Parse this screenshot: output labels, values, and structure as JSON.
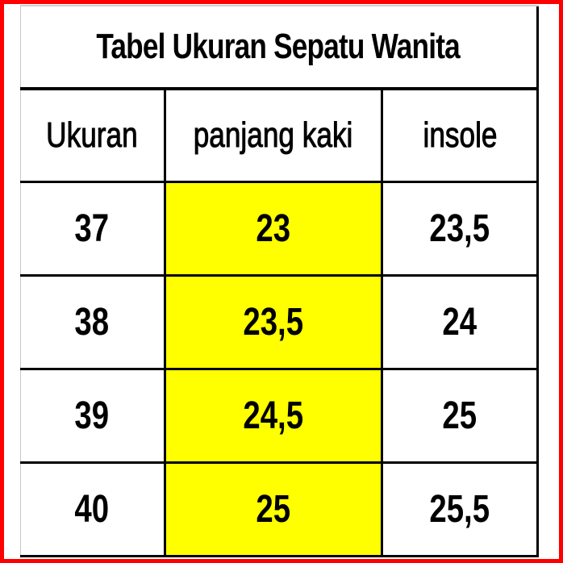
{
  "table": {
    "title": "Tabel Ukuran Sepatu Wanita",
    "headers": [
      "Ukuran",
      "panjang kaki",
      "insole"
    ],
    "rows": [
      [
        "37",
        "23",
        "23,5"
      ],
      [
        "38",
        "23,5",
        "24"
      ],
      [
        "39",
        "24,5",
        "25"
      ],
      [
        "40",
        "25",
        "25,5"
      ]
    ],
    "highlight_color": "#ffff00",
    "frame_color": "#ff0000"
  }
}
